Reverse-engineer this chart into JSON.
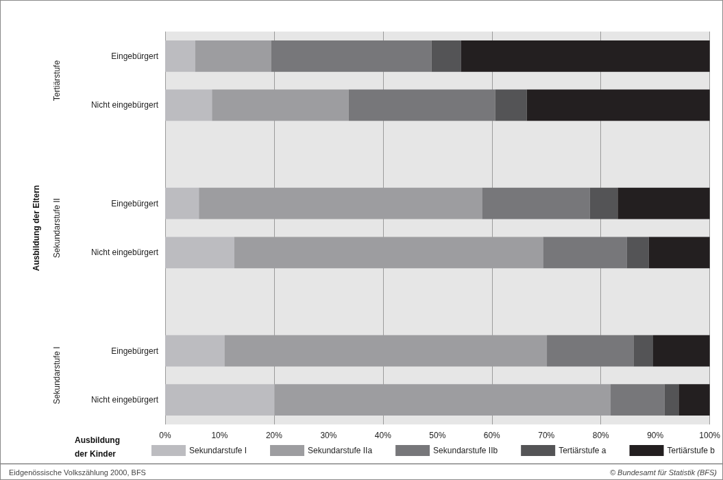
{
  "chart_data": {
    "type": "bar",
    "orientation": "horizontal",
    "stacked": true,
    "legend_title": "Ausbildung der Kinder",
    "categories": [
      "Eingebürgert",
      "Nicht eingebürgert",
      null,
      "Eingebürgert",
      "Nicht eingebürgert",
      null,
      "Eingebürgert",
      "Nicht eingebürgert"
    ],
    "series": [
      {
        "name": "Sekundarstufe I",
        "color": "#bcbcc0",
        "values": [
          5.5,
          8.6,
          null,
          6.2,
          12.7,
          null,
          10.9,
          20.1
        ]
      },
      {
        "name": "Sekundarstufe IIa",
        "color": "#9d9da0",
        "values": [
          14.0,
          25.1,
          null,
          52.0,
          56.7,
          null,
          59.2,
          61.7
        ]
      },
      {
        "name": "Sekundarstufe IIb",
        "color": "#77777a",
        "values": [
          29.4,
          26.9,
          null,
          19.8,
          15.4,
          null,
          15.9,
          9.9
        ]
      },
      {
        "name": "Tertiärstufe a",
        "color": "#545456",
        "values": [
          5.4,
          5.8,
          null,
          5.1,
          4.0,
          null,
          3.6,
          2.6
        ]
      },
      {
        "name": "Tertiärstufe b",
        "color": "#231f20",
        "values": [
          45.7,
          33.6,
          null,
          16.9,
          11.2,
          null,
          10.4,
          5.7
        ]
      }
    ],
    "xlim": [
      0,
      100
    ],
    "xticks": [
      {
        "value": 0,
        "label": "0%"
      },
      {
        "value": 10,
        "label": "10%"
      },
      {
        "value": 20,
        "label": "20%"
      },
      {
        "value": 30,
        "label": "30%"
      },
      {
        "value": 40,
        "label": "40%"
      },
      {
        "value": 50,
        "label": "50%"
      },
      {
        "value": 60,
        "label": "60%"
      },
      {
        "value": 70,
        "label": "70%"
      },
      {
        "value": 80,
        "label": "80%"
      },
      {
        "value": 90,
        "label": "90%"
      },
      {
        "value": 100,
        "label": "100%"
      }
    ],
    "grid": "x",
    "legend": "bottom",
    "annotations": [
      "Tertiärstufe",
      "Sekundarstufe II",
      "Sekundarstufe I",
      "Ausbildung der Eltern",
      "Eidgenössische Volkszählung 2000, BFS",
      "© Bundesamt für Statistik (BFS)"
    ]
  }
}
